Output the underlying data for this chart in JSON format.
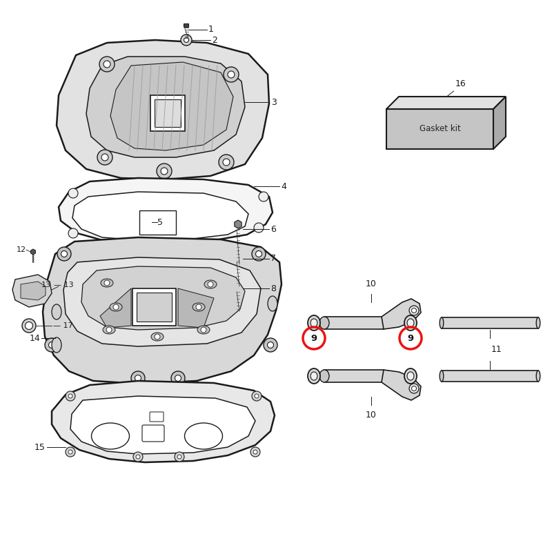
{
  "bg_color": "#ffffff",
  "lc": "#1a1a1a",
  "red": "#ee1111",
  "gasket_label": "Gasket kit",
  "fill_cover": "#e2e2e2",
  "fill_inner": "#d0d0d0",
  "fill_box": "#d8d8d8",
  "fill_gasket": "#f5f5f5",
  "fill_bot": "#e8e8e8",
  "fill_gk": "#c8c8c8",
  "figsize": [
    8.0,
    8.0
  ],
  "dpi": 100
}
